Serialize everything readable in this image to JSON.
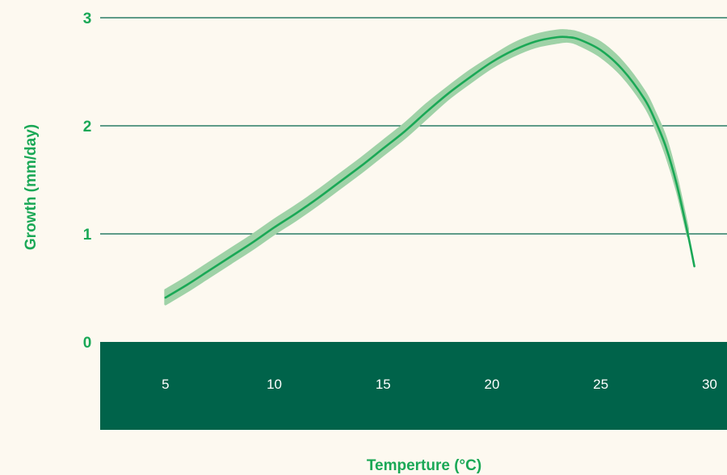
{
  "colors": {
    "background": "#fdf9f0",
    "accent": "#1aa856",
    "band": "#9fd2a7",
    "axis_band": "#00634a",
    "gridline": "#00634a",
    "x_tick_text": "#ffffff"
  },
  "chart_data": {
    "type": "line",
    "title": "",
    "xlabel": "Temperture (°C)",
    "ylabel": "Growth (mm/day)",
    "xlim": [
      2,
      30.8
    ],
    "ylim": [
      -0.8,
      3.05
    ],
    "x_ticks": [
      5,
      10,
      15,
      20,
      25,
      30
    ],
    "x_tick_labels": [
      "5",
      "10",
      "15",
      "20",
      "25",
      "30"
    ],
    "y_ticks": [
      0,
      1,
      2,
      3
    ],
    "y_tick_labels": [
      "0",
      "1",
      "2",
      "3"
    ],
    "grid": "horizontal",
    "series": [
      {
        "x": [
          5,
          6,
          7,
          8,
          9,
          10,
          11,
          12,
          13,
          14,
          15,
          16,
          17,
          18,
          19,
          20,
          21,
          22,
          23,
          23.5,
          24,
          25,
          26,
          27,
          27.5,
          28,
          28.5,
          29,
          29.3
        ],
        "y": [
          0.41,
          0.53,
          0.66,
          0.79,
          0.92,
          1.06,
          1.19,
          1.33,
          1.48,
          1.63,
          1.79,
          1.95,
          2.13,
          2.3,
          2.45,
          2.59,
          2.7,
          2.78,
          2.82,
          2.82,
          2.8,
          2.7,
          2.52,
          2.25,
          2.05,
          1.8,
          1.45,
          1.0,
          0.7
        ],
        "band_x": [
          5,
          6,
          7,
          8,
          9,
          10,
          11,
          12,
          13,
          14,
          15,
          16,
          17,
          18,
          19,
          20,
          21,
          22,
          23,
          23.5,
          24,
          25,
          26,
          27,
          27.5,
          28,
          28.5,
          29
        ],
        "band_lower": [
          0.35,
          0.47,
          0.6,
          0.73,
          0.86,
          1.0,
          1.13,
          1.27,
          1.42,
          1.57,
          1.73,
          1.89,
          2.07,
          2.25,
          2.4,
          2.54,
          2.65,
          2.73,
          2.77,
          2.78,
          2.75,
          2.64,
          2.46,
          2.19,
          1.99,
          1.73,
          1.4,
          0.98
        ],
        "band_upper": [
          0.48,
          0.6,
          0.73,
          0.86,
          0.99,
          1.13,
          1.26,
          1.4,
          1.55,
          1.7,
          1.86,
          2.02,
          2.2,
          2.36,
          2.51,
          2.64,
          2.76,
          2.84,
          2.88,
          2.88,
          2.86,
          2.77,
          2.59,
          2.32,
          2.12,
          1.88,
          1.51,
          1.05
        ]
      }
    ]
  }
}
